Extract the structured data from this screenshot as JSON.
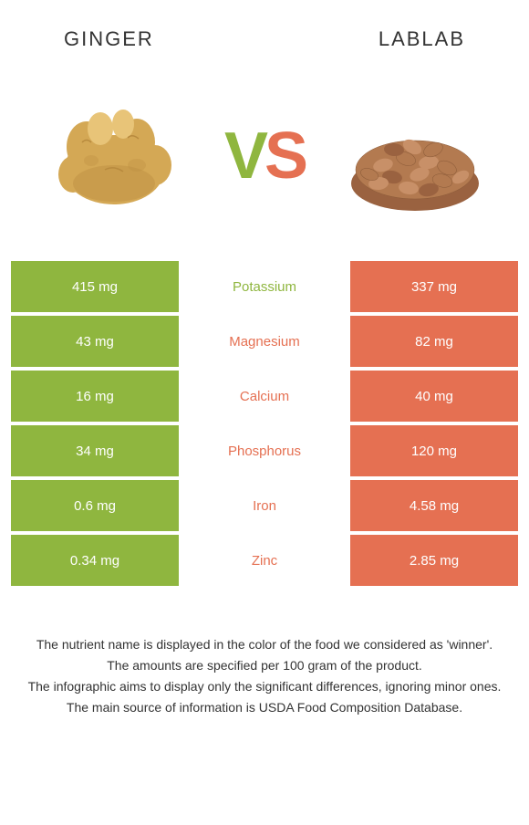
{
  "header": {
    "left_title": "GINGER",
    "right_title": "LABLAB"
  },
  "vs": {
    "v": "V",
    "s": "S"
  },
  "colors": {
    "left_bg": "#8fb63f",
    "right_bg": "#e57052",
    "winner_left": "#8fb63f",
    "winner_right": "#e57052"
  },
  "rows": [
    {
      "left": "415 mg",
      "label": "Potassium",
      "right": "337 mg",
      "winner": "left"
    },
    {
      "left": "43 mg",
      "label": "Magnesium",
      "right": "82 mg",
      "winner": "right"
    },
    {
      "left": "16 mg",
      "label": "Calcium",
      "right": "40 mg",
      "winner": "right"
    },
    {
      "left": "34 mg",
      "label": "Phosphorus",
      "right": "120 mg",
      "winner": "right"
    },
    {
      "left": "0.6 mg",
      "label": "Iron",
      "right": "4.58 mg",
      "winner": "right"
    },
    {
      "left": "0.34 mg",
      "label": "Zinc",
      "right": "2.85 mg",
      "winner": "right"
    }
  ],
  "footnotes": [
    "The nutrient name is displayed in the color of the food we considered as 'winner'.",
    "The amounts are specified per 100 gram of the product.",
    "The infographic aims to display only the significant differences, ignoring minor ones.",
    "The main source of information is USDA Food Composition Database."
  ]
}
